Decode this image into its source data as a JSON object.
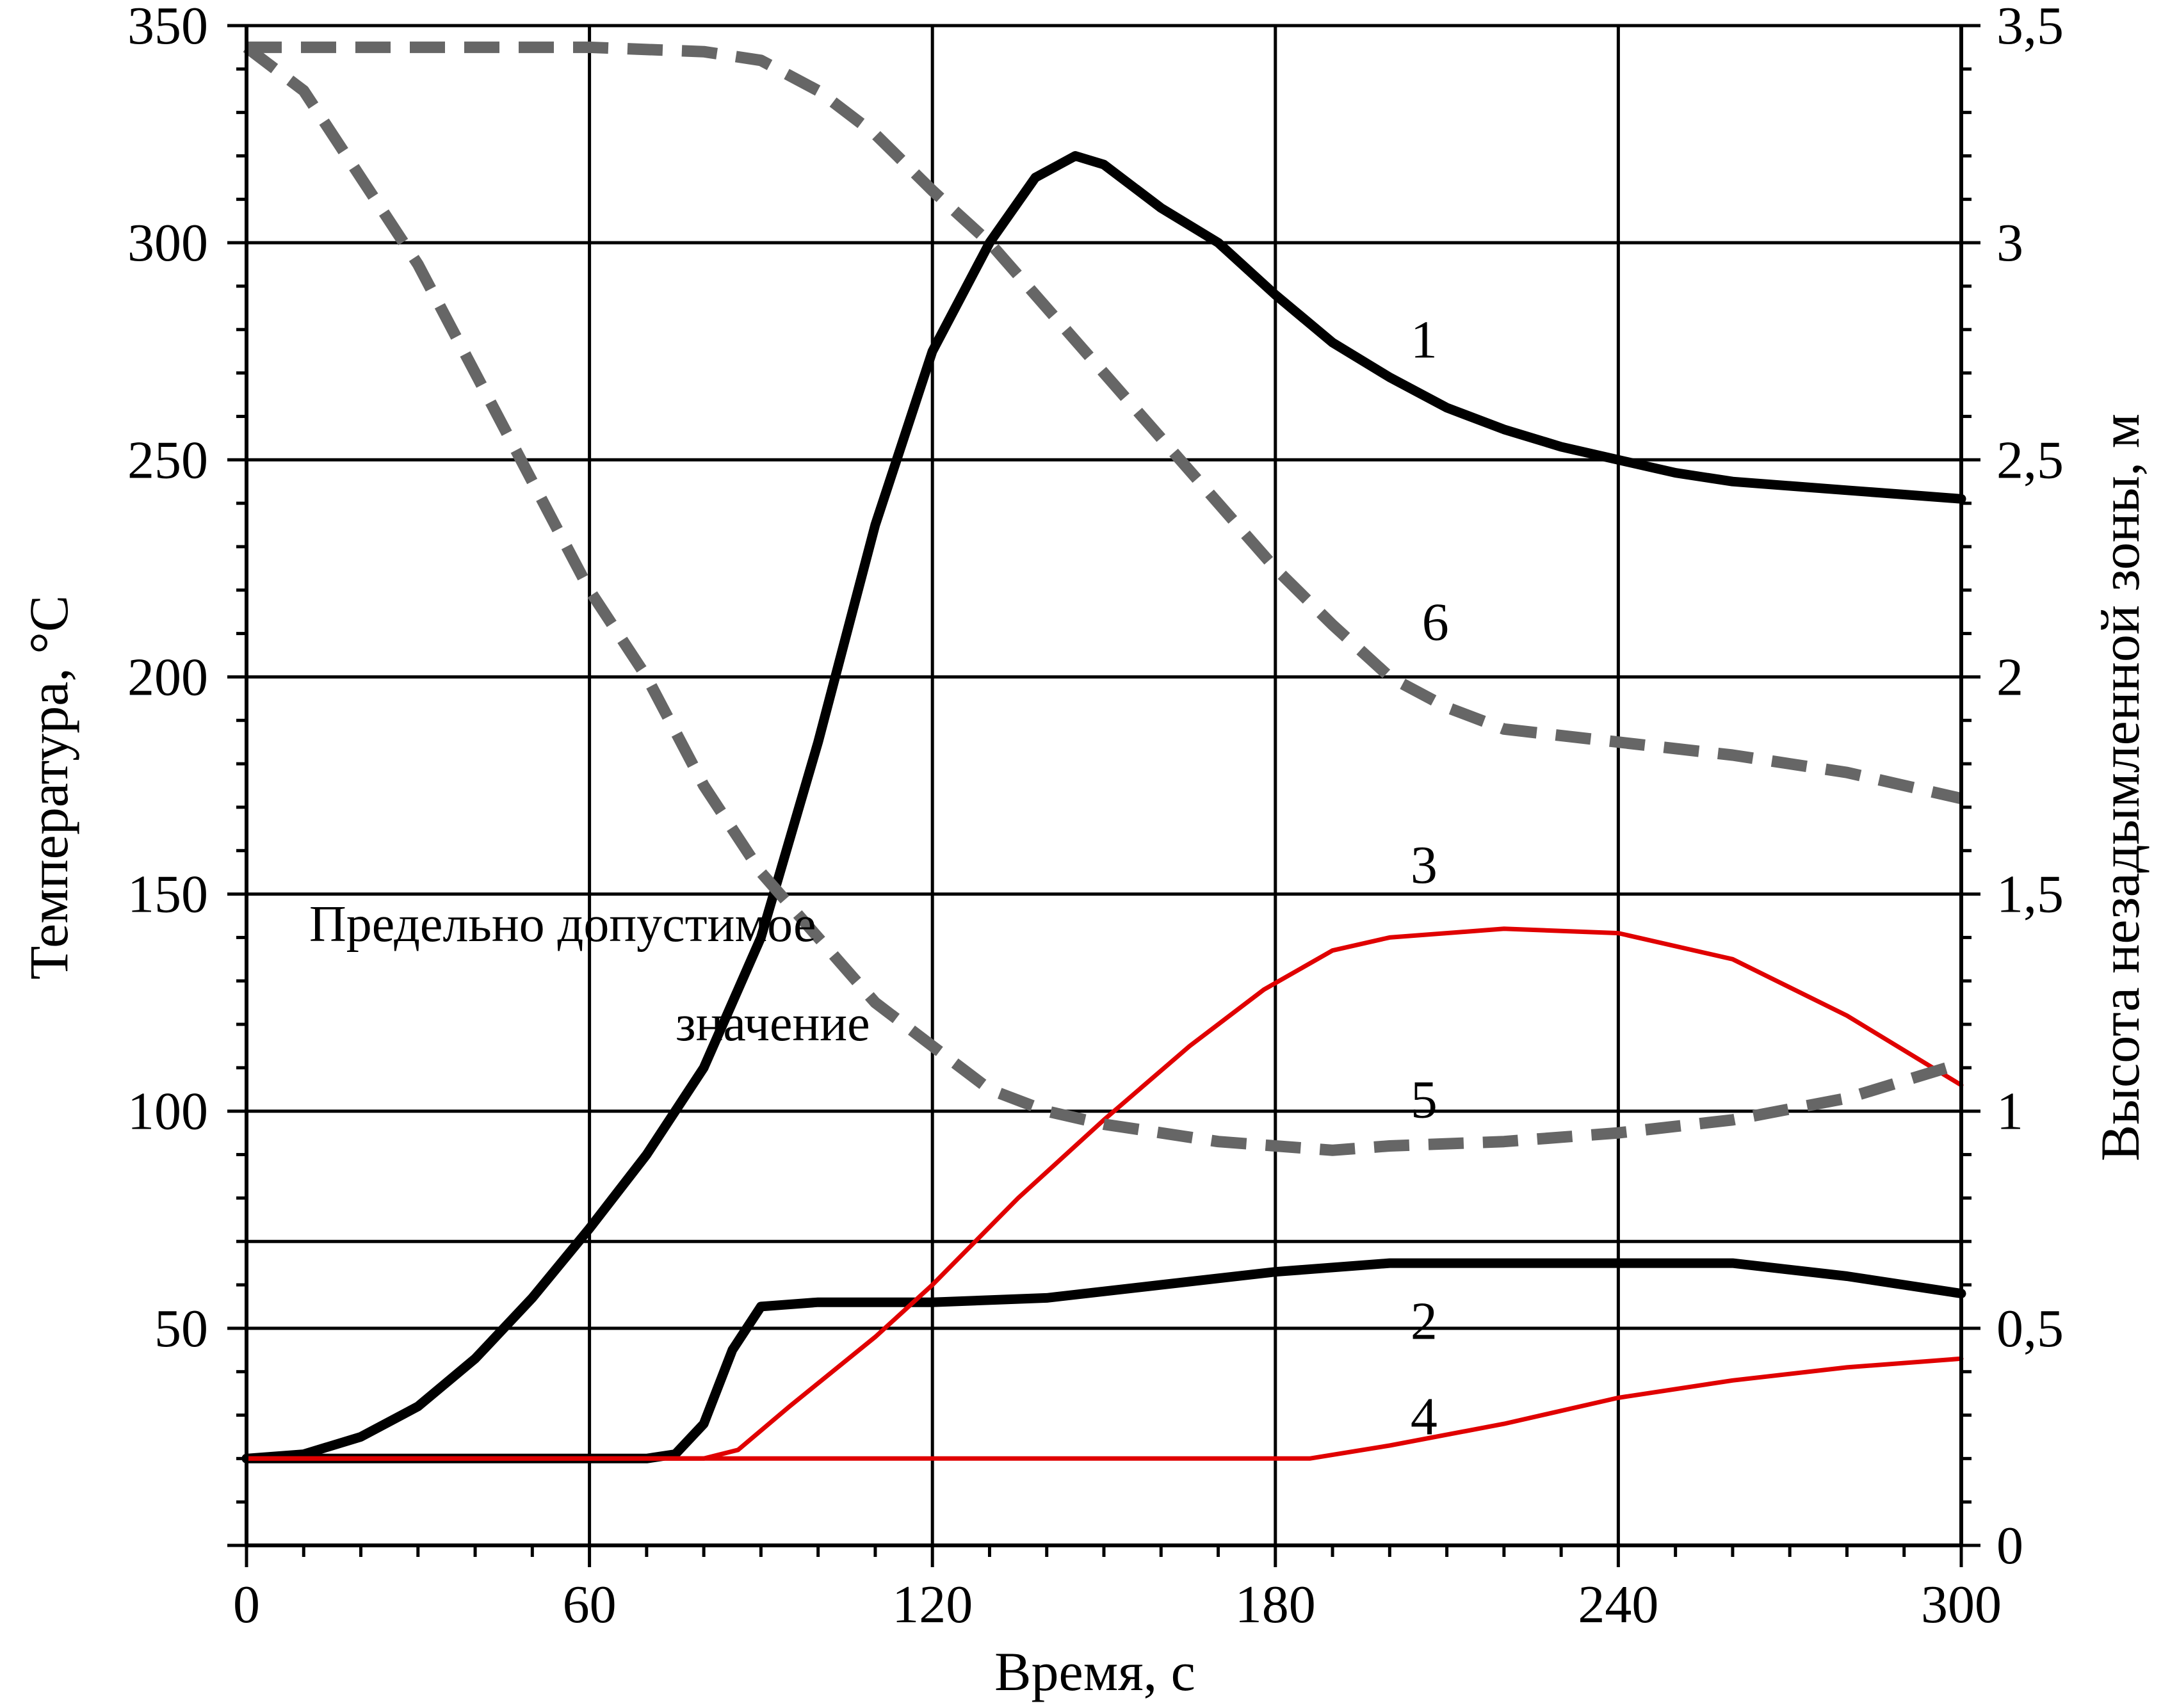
{
  "chart_data": {
    "type": "line",
    "xlabel": "Время, с",
    "ylabel_left": "Температура, °С",
    "ylabel_right": "Высота незадымленной зоны, м",
    "xlim": [
      0,
      300
    ],
    "ylim_left": [
      0,
      350
    ],
    "ylim_right": [
      0,
      3.5
    ],
    "grid": true,
    "x_ticks": [
      0,
      60,
      120,
      180,
      240,
      300
    ],
    "x_tick_labels": [
      "0",
      "60",
      "120",
      "180",
      "240",
      "300"
    ],
    "y_left_ticks": [
      50,
      100,
      150,
      200,
      250,
      300,
      350
    ],
    "y_left_tick_labels": [
      "50",
      "100",
      "150",
      "200",
      "250",
      "300",
      "350"
    ],
    "y_right_ticks": [
      0,
      0.5,
      1,
      1.5,
      2,
      2.5,
      3,
      3.5
    ],
    "y_right_tick_labels": [
      "0",
      "0,5",
      "1",
      "1,5",
      "2",
      "2,5",
      "3",
      "3,5"
    ],
    "threshold": {
      "value": 70,
      "label_line1": "Предельно допустимое",
      "label_line2": "значение"
    },
    "series": [
      {
        "name": "1",
        "axis": "left",
        "color": "#000000",
        "style": "solid",
        "points": [
          [
            0,
            20
          ],
          [
            10,
            21
          ],
          [
            20,
            25
          ],
          [
            30,
            32
          ],
          [
            40,
            43
          ],
          [
            50,
            57
          ],
          [
            60,
            73
          ],
          [
            70,
            90
          ],
          [
            80,
            110
          ],
          [
            90,
            140
          ],
          [
            100,
            185
          ],
          [
            110,
            235
          ],
          [
            120,
            275
          ],
          [
            130,
            300
          ],
          [
            138,
            315
          ],
          [
            145,
            320
          ],
          [
            150,
            318
          ],
          [
            160,
            308
          ],
          [
            170,
            300
          ],
          [
            180,
            288
          ],
          [
            190,
            277
          ],
          [
            200,
            269
          ],
          [
            210,
            262
          ],
          [
            220,
            257
          ],
          [
            230,
            253
          ],
          [
            240,
            250
          ],
          [
            250,
            247
          ],
          [
            260,
            245
          ],
          [
            270,
            244
          ],
          [
            280,
            243
          ],
          [
            290,
            242
          ],
          [
            300,
            241
          ]
        ]
      },
      {
        "name": "2",
        "axis": "left",
        "color": "#000000",
        "style": "solid",
        "points": [
          [
            0,
            20
          ],
          [
            60,
            20
          ],
          [
            70,
            20
          ],
          [
            75,
            21
          ],
          [
            80,
            28
          ],
          [
            85,
            45
          ],
          [
            90,
            55
          ],
          [
            100,
            56
          ],
          [
            120,
            56
          ],
          [
            140,
            57
          ],
          [
            160,
            60
          ],
          [
            180,
            63
          ],
          [
            200,
            65
          ],
          [
            220,
            65
          ],
          [
            260,
            65
          ],
          [
            280,
            62
          ],
          [
            300,
            58
          ]
        ]
      },
      {
        "name": "3",
        "axis": "left",
        "color": "#e00000",
        "style": "solid",
        "points": [
          [
            0,
            20
          ],
          [
            80,
            20
          ],
          [
            86,
            22
          ],
          [
            95,
            32
          ],
          [
            110,
            48
          ],
          [
            120,
            60
          ],
          [
            135,
            80
          ],
          [
            150,
            98
          ],
          [
            165,
            115
          ],
          [
            178,
            128
          ],
          [
            190,
            137
          ],
          [
            200,
            140
          ],
          [
            220,
            142
          ],
          [
            240,
            141
          ],
          [
            260,
            135
          ],
          [
            280,
            122
          ],
          [
            300,
            106
          ]
        ]
      },
      {
        "name": "4",
        "axis": "left",
        "color": "#e00000",
        "style": "solid",
        "points": [
          [
            0,
            20
          ],
          [
            180,
            20
          ],
          [
            186,
            20
          ],
          [
            200,
            23
          ],
          [
            220,
            28
          ],
          [
            240,
            34
          ],
          [
            260,
            38
          ],
          [
            280,
            41
          ],
          [
            300,
            43
          ]
        ]
      },
      {
        "name": "5",
        "axis": "right",
        "color": "#666666",
        "style": "dashed",
        "points": [
          [
            0,
            3.45
          ],
          [
            10,
            3.35
          ],
          [
            20,
            3.15
          ],
          [
            30,
            2.95
          ],
          [
            40,
            2.7
          ],
          [
            50,
            2.45
          ],
          [
            60,
            2.2
          ],
          [
            70,
            2.0
          ],
          [
            80,
            1.75
          ],
          [
            90,
            1.55
          ],
          [
            100,
            1.4
          ],
          [
            110,
            1.25
          ],
          [
            120,
            1.15
          ],
          [
            130,
            1.05
          ],
          [
            140,
            1.0
          ],
          [
            150,
            0.97
          ],
          [
            160,
            0.95
          ],
          [
            170,
            0.93
          ],
          [
            180,
            0.92
          ],
          [
            190,
            0.91
          ],
          [
            200,
            0.92
          ],
          [
            220,
            0.93
          ],
          [
            240,
            0.95
          ],
          [
            260,
            0.98
          ],
          [
            280,
            1.03
          ],
          [
            300,
            1.11
          ]
        ]
      },
      {
        "name": "6",
        "axis": "right",
        "color": "#666666",
        "style": "dashed",
        "points": [
          [
            0,
            3.45
          ],
          [
            30,
            3.45
          ],
          [
            60,
            3.45
          ],
          [
            80,
            3.44
          ],
          [
            90,
            3.42
          ],
          [
            100,
            3.35
          ],
          [
            110,
            3.25
          ],
          [
            120,
            3.12
          ],
          [
            130,
            3.0
          ],
          [
            140,
            2.85
          ],
          [
            150,
            2.7
          ],
          [
            160,
            2.55
          ],
          [
            170,
            2.4
          ],
          [
            180,
            2.25
          ],
          [
            190,
            2.12
          ],
          [
            200,
            2.0
          ],
          [
            210,
            1.93
          ],
          [
            220,
            1.88
          ],
          [
            240,
            1.85
          ],
          [
            260,
            1.82
          ],
          [
            280,
            1.78
          ],
          [
            300,
            1.72
          ]
        ]
      }
    ],
    "curve_labels": [
      {
        "text": "1",
        "x": 206,
        "y": 278
      },
      {
        "text": "6",
        "x": 208,
        "y": 213
      },
      {
        "text": "3",
        "x": 206,
        "y": 157
      },
      {
        "text": "5",
        "x": 206,
        "y": 103
      },
      {
        "text": "2",
        "x": 206,
        "y": 52
      },
      {
        "text": "4",
        "x": 206,
        "y": 30
      }
    ]
  }
}
